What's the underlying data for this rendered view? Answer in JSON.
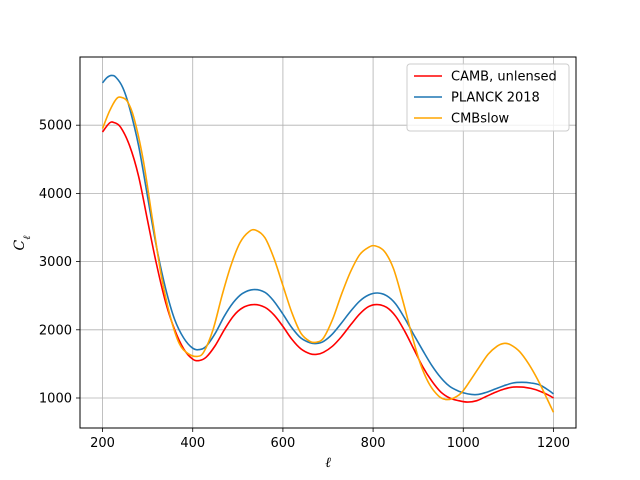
{
  "chart_data": {
    "type": "line",
    "xlabel": "ℓ",
    "ylabel": "C_ℓ",
    "xlim": [
      150,
      1250
    ],
    "ylim": [
      560,
      6000
    ],
    "grid": true,
    "legend_position": "top-right",
    "x_ticks": [
      200,
      400,
      600,
      800,
      1000,
      1200
    ],
    "y_ticks": [
      1000,
      2000,
      3000,
      4000,
      5000
    ],
    "series": [
      {
        "name": "CAMB, unlensed",
        "color": "#ff0000",
        "points": [
          [
            200,
            4900
          ],
          [
            215,
            5030
          ],
          [
            225,
            5040
          ],
          [
            240,
            4970
          ],
          [
            260,
            4700
          ],
          [
            280,
            4250
          ],
          [
            300,
            3600
          ],
          [
            320,
            2950
          ],
          [
            340,
            2400
          ],
          [
            360,
            2000
          ],
          [
            380,
            1720
          ],
          [
            400,
            1570
          ],
          [
            415,
            1550
          ],
          [
            430,
            1600
          ],
          [
            450,
            1770
          ],
          [
            470,
            2000
          ],
          [
            490,
            2200
          ],
          [
            510,
            2320
          ],
          [
            535,
            2370
          ],
          [
            560,
            2330
          ],
          [
            580,
            2220
          ],
          [
            600,
            2050
          ],
          [
            620,
            1860
          ],
          [
            640,
            1720
          ],
          [
            660,
            1650
          ],
          [
            675,
            1640
          ],
          [
            690,
            1670
          ],
          [
            710,
            1760
          ],
          [
            730,
            1900
          ],
          [
            750,
            2070
          ],
          [
            770,
            2230
          ],
          [
            790,
            2340
          ],
          [
            810,
            2370
          ],
          [
            830,
            2330
          ],
          [
            850,
            2200
          ],
          [
            870,
            1980
          ],
          [
            890,
            1720
          ],
          [
            910,
            1460
          ],
          [
            930,
            1250
          ],
          [
            950,
            1090
          ],
          [
            970,
            1000
          ],
          [
            990,
            960
          ],
          [
            1010,
            940
          ],
          [
            1030,
            960
          ],
          [
            1050,
            1020
          ],
          [
            1070,
            1080
          ],
          [
            1090,
            1130
          ],
          [
            1110,
            1160
          ],
          [
            1130,
            1160
          ],
          [
            1150,
            1140
          ],
          [
            1170,
            1100
          ],
          [
            1190,
            1040
          ],
          [
            1200,
            1000
          ]
        ]
      },
      {
        "name": "PLANCK 2018",
        "color": "#1f77b4",
        "points": [
          [
            200,
            5620
          ],
          [
            210,
            5700
          ],
          [
            220,
            5730
          ],
          [
            230,
            5700
          ],
          [
            245,
            5550
          ],
          [
            260,
            5250
          ],
          [
            280,
            4700
          ],
          [
            300,
            3950
          ],
          [
            320,
            3200
          ],
          [
            340,
            2600
          ],
          [
            360,
            2150
          ],
          [
            380,
            1880
          ],
          [
            400,
            1730
          ],
          [
            415,
            1710
          ],
          [
            430,
            1760
          ],
          [
            450,
            1950
          ],
          [
            470,
            2200
          ],
          [
            490,
            2400
          ],
          [
            510,
            2530
          ],
          [
            535,
            2590
          ],
          [
            560,
            2550
          ],
          [
            580,
            2420
          ],
          [
            600,
            2230
          ],
          [
            620,
            2030
          ],
          [
            640,
            1880
          ],
          [
            660,
            1810
          ],
          [
            675,
            1800
          ],
          [
            690,
            1830
          ],
          [
            710,
            1940
          ],
          [
            730,
            2100
          ],
          [
            750,
            2270
          ],
          [
            770,
            2420
          ],
          [
            790,
            2510
          ],
          [
            810,
            2540
          ],
          [
            830,
            2500
          ],
          [
            850,
            2380
          ],
          [
            870,
            2170
          ],
          [
            890,
            1930
          ],
          [
            910,
            1700
          ],
          [
            930,
            1480
          ],
          [
            950,
            1300
          ],
          [
            970,
            1170
          ],
          [
            990,
            1100
          ],
          [
            1010,
            1060
          ],
          [
            1030,
            1050
          ],
          [
            1050,
            1080
          ],
          [
            1070,
            1130
          ],
          [
            1090,
            1180
          ],
          [
            1110,
            1220
          ],
          [
            1130,
            1230
          ],
          [
            1150,
            1220
          ],
          [
            1170,
            1190
          ],
          [
            1190,
            1110
          ],
          [
            1200,
            1060
          ]
        ]
      },
      {
        "name": "CMBslow",
        "color": "#ffa500",
        "points": [
          [
            200,
            4950
          ],
          [
            215,
            5200
          ],
          [
            230,
            5380
          ],
          [
            240,
            5410
          ],
          [
            255,
            5350
          ],
          [
            270,
            5100
          ],
          [
            290,
            4500
          ],
          [
            310,
            3650
          ],
          [
            330,
            2800
          ],
          [
            350,
            2200
          ],
          [
            370,
            1800
          ],
          [
            390,
            1650
          ],
          [
            410,
            1610
          ],
          [
            425,
            1680
          ],
          [
            445,
            2000
          ],
          [
            465,
            2500
          ],
          [
            485,
            2950
          ],
          [
            505,
            3280
          ],
          [
            525,
            3440
          ],
          [
            540,
            3460
          ],
          [
            560,
            3350
          ],
          [
            580,
            3050
          ],
          [
            600,
            2650
          ],
          [
            620,
            2250
          ],
          [
            640,
            1950
          ],
          [
            660,
            1830
          ],
          [
            675,
            1820
          ],
          [
            690,
            1880
          ],
          [
            710,
            2150
          ],
          [
            730,
            2520
          ],
          [
            750,
            2850
          ],
          [
            770,
            3100
          ],
          [
            790,
            3210
          ],
          [
            805,
            3230
          ],
          [
            825,
            3150
          ],
          [
            845,
            2900
          ],
          [
            865,
            2450
          ],
          [
            885,
            1950
          ],
          [
            905,
            1500
          ],
          [
            925,
            1200
          ],
          [
            945,
            1030
          ],
          [
            960,
            980
          ],
          [
            975,
            990
          ],
          [
            995,
            1070
          ],
          [
            1015,
            1250
          ],
          [
            1035,
            1450
          ],
          [
            1055,
            1640
          ],
          [
            1075,
            1760
          ],
          [
            1090,
            1800
          ],
          [
            1105,
            1780
          ],
          [
            1125,
            1680
          ],
          [
            1145,
            1500
          ],
          [
            1165,
            1270
          ],
          [
            1185,
            1000
          ],
          [
            1200,
            790
          ]
        ]
      }
    ]
  }
}
